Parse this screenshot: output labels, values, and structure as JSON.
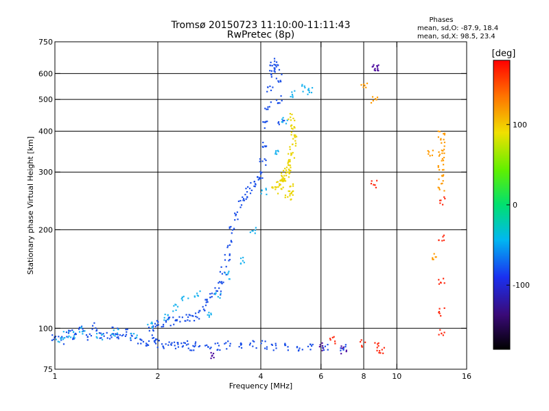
{
  "chart_data": {
    "type": "scatter",
    "title": "Tromsø 20150723 11:10:00-11:11:43",
    "subtitle": "RwPretec (8p)",
    "xlabel": "Frequency [MHz]",
    "ylabel": "Stationary phase Virtual Height [km]",
    "x_scale": "log",
    "y_scale": "log",
    "xlim": [
      1,
      16
    ],
    "ylim": [
      75,
      750
    ],
    "x_ticks": [
      {
        "value": 1,
        "label": "1"
      },
      {
        "value": 2,
        "label": "2"
      },
      {
        "value": 4,
        "label": "4"
      },
      {
        "value": 6,
        "label": "6"
      },
      {
        "value": 8,
        "label": "8"
      },
      {
        "value": 10,
        "label": "10"
      },
      {
        "value": 16,
        "label": "16"
      }
    ],
    "y_ticks": [
      {
        "value": 75,
        "label": "75"
      },
      {
        "value": 100,
        "label": "100"
      },
      {
        "value": 200,
        "label": "200"
      },
      {
        "value": 300,
        "label": "300"
      },
      {
        "value": 400,
        "label": "400"
      },
      {
        "value": 500,
        "label": "500"
      },
      {
        "value": 600,
        "label": "600"
      },
      {
        "value": 750,
        "label": "750"
      }
    ],
    "x_gridlines": [
      2,
      4,
      6,
      8,
      10
    ],
    "y_gridlines": [
      100,
      200,
      300,
      400,
      500,
      600
    ],
    "grid": true,
    "stats": {
      "heading": "Phases",
      "o_line": "mean, sd,O:  -87.9, 18.4",
      "x_line": "mean, sd,X:  98.5, 23.4"
    },
    "colorbar": {
      "label": "[deg]",
      "range": [
        -180,
        180
      ],
      "tick_values": [
        100,
        0,
        -100
      ],
      "tick_labels": [
        "100",
        "0",
        "-100"
      ]
    },
    "series": [
      {
        "phase_deg": -110,
        "color": "#1a4fe8",
        "x": [
          1.0,
          1.04,
          1.1,
          1.15,
          1.2,
          1.25,
          1.3,
          1.38,
          1.45,
          1.5,
          1.55,
          1.62,
          1.7,
          1.78,
          1.85,
          1.93,
          2.0,
          2.1,
          2.2,
          2.3,
          2.4,
          2.5,
          2.6,
          2.8,
          3.0,
          3.2,
          3.5,
          3.8,
          4.1,
          4.4,
          4.8,
          5.2,
          5.6,
          6.2,
          7.0
        ],
        "y": [
          94,
          92,
          97,
          95,
          99,
          94,
          101,
          96,
          95,
          98,
          93,
          97,
          94,
          92,
          91,
          93,
          90,
          89,
          89,
          88,
          89,
          88,
          89,
          88,
          88,
          89,
          88,
          89,
          89,
          88,
          88,
          87,
          88,
          87,
          87
        ]
      },
      {
        "phase_deg": -105,
        "color": "#1a4fe8",
        "x": [
          1.9,
          2.0,
          2.1,
          2.2,
          2.3,
          2.4,
          2.5,
          2.6,
          2.7,
          2.8,
          2.9,
          3.0,
          3.05,
          3.1,
          3.2,
          3.25,
          3.3,
          3.4,
          3.5,
          3.6,
          3.7,
          3.8,
          3.9,
          4.0,
          4.05,
          4.1,
          4.15,
          4.2,
          4.25,
          4.3,
          4.35,
          4.4,
          4.45,
          4.5,
          4.55,
          4.6
        ],
        "y": [
          100,
          103,
          104,
          105,
          106,
          107,
          108,
          110,
          115,
          120,
          125,
          130,
          140,
          150,
          165,
          180,
          200,
          220,
          240,
          255,
          265,
          275,
          285,
          295,
          320,
          360,
          420,
          480,
          540,
          600,
          640,
          650,
          620,
          580,
          500,
          420
        ]
      },
      {
        "phase_deg": -80,
        "color": "#1eb4f0",
        "x": [
          1.02,
          1.08,
          1.12,
          1.2,
          1.35,
          1.5,
          1.7,
          1.9,
          2.1,
          2.25,
          2.4,
          2.6,
          2.8,
          3.0,
          3.2,
          3.5,
          3.8,
          4.1,
          4.4,
          4.7,
          5.0,
          5.4,
          5.6
        ],
        "y": [
          93,
          95,
          96,
          98,
          94,
          97,
          95,
          102,
          108,
          115,
          122,
          128,
          110,
          125,
          145,
          160,
          200,
          260,
          350,
          430,
          520,
          540,
          530
        ]
      },
      {
        "phase_deg": 95,
        "color": "#ead400",
        "x": [
          4.4,
          4.5,
          4.55,
          4.6,
          4.65,
          4.7,
          4.75,
          4.8,
          4.85,
          4.9,
          4.95,
          4.8,
          4.85,
          4.9,
          4.95,
          5.0,
          5.0,
          5.0,
          4.9
        ],
        "y": [
          265,
          270,
          275,
          280,
          285,
          290,
          295,
          300,
          310,
          270,
          260,
          250,
          320,
          340,
          360,
          380,
          400,
          420,
          440
        ]
      },
      {
        "phase_deg": 120,
        "color": "#ff9a00",
        "x": [
          8.0,
          8.6,
          13.5,
          13.5,
          13.5,
          13.5,
          13.5,
          13.5,
          13.5,
          12.5,
          12.8
        ],
        "y": [
          545,
          495,
          390,
          370,
          350,
          330,
          310,
          290,
          270,
          340,
          165
        ]
      },
      {
        "phase_deg": 165,
        "color": "#ff2a10",
        "x": [
          8.6,
          13.5,
          13.5,
          13.5,
          13.5,
          13.5,
          8.7,
          8.0,
          6.5,
          9.0
        ],
        "y": [
          275,
          245,
          190,
          140,
          112,
          98,
          88,
          90,
          92,
          85
        ]
      },
      {
        "phase_deg": -150,
        "color": "#5010a0",
        "x": [
          8.6,
          8.7,
          2.9,
          6.0,
          7.0
        ],
        "y": [
          628,
          620,
          82,
          88,
          86
        ]
      }
    ]
  }
}
